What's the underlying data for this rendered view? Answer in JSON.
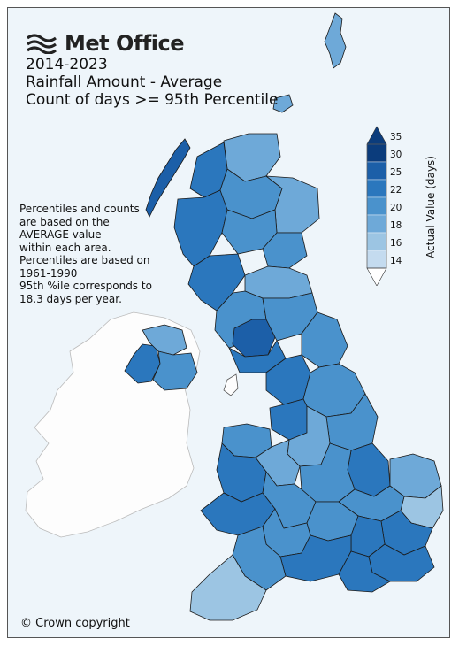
{
  "header": {
    "logo_text": "Met Office",
    "period": "2014-2023",
    "subtitle_1": "Rainfall Amount - Average",
    "subtitle_2": "Count of days >= 95th Percentile"
  },
  "note_lines": [
    "Percentiles and counts",
    "are based on the",
    "AVERAGE value",
    "within each area.",
    "Percentiles are based on",
    "1961-1990",
    "95th %ile corresponds to",
    "18.3 days per year."
  ],
  "legend": {
    "axis_label": "Actual Value (days)",
    "ticks": [
      "35",
      "30",
      "25",
      "22",
      "20",
      "18",
      "16",
      "14"
    ],
    "colors": [
      "#0b3c7c",
      "#1c5fa8",
      "#2b77bd",
      "#4a92cc",
      "#6ea9d8",
      "#9cc5e3",
      "#c4dbef",
      "#e6effa"
    ]
  },
  "copyright": "© Crown copyright",
  "colors": {
    "background": "#eef5fa",
    "ireland": "#fdfdfd",
    "border": "#1a1a1a"
  }
}
